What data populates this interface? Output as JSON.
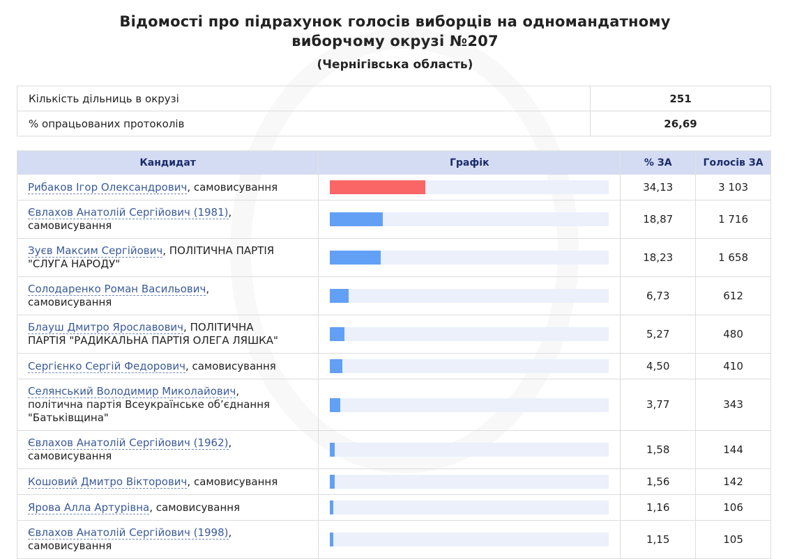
{
  "header": {
    "title_line1": "Відомості про підрахунок голосів виборців на одномандатному",
    "title_line2": "виборчому окрузі №207",
    "region": "(Чернігівська область)"
  },
  "summary": {
    "precincts_label": "Кількість дільниць в окрузі",
    "precincts_value": "251",
    "processed_label": "% опрацьованих протоколів",
    "processed_value": "26,69"
  },
  "table": {
    "headers": {
      "candidate": "Кандидат",
      "graph": "Графік",
      "percent": "% ЗА",
      "votes": "Голосів ЗА"
    }
  },
  "colors": {
    "leader_bar": "#fa6666",
    "bar": "#62a0f5",
    "track": "#ebf0fb"
  },
  "candidates": [
    {
      "name": "Рибаков Ігор Олександрович",
      "party_suffix": ", самовисування",
      "party_line2": "",
      "percent": "34,13",
      "votes": "3 103",
      "share": 34.13
    },
    {
      "name": "Євлахов Анатолій Сергійович (1981)",
      "party_suffix": ",",
      "party_line2": "самовисування",
      "percent": "18,87",
      "votes": "1 716",
      "share": 18.87
    },
    {
      "name": "Зуєв Максим Сергійович",
      "party_suffix": ", ПОЛІТИЧНА ПАРТІЯ",
      "party_line2": "\"СЛУГА НАРОДУ\"",
      "percent": "18,23",
      "votes": "1 658",
      "share": 18.23
    },
    {
      "name": "Солодаренко Роман Васильович",
      "party_suffix": ",",
      "party_line2": "самовисування",
      "percent": "6,73",
      "votes": "612",
      "share": 6.73
    },
    {
      "name": "Блауш Дмитро Ярославович",
      "party_suffix": ", ПОЛІТИЧНА",
      "party_line2": "ПАРТІЯ \"РАДИКАЛЬНА ПАРТІЯ ОЛЕГА ЛЯШКА\"",
      "percent": "5,27",
      "votes": "480",
      "share": 5.27
    },
    {
      "name": "Сергієнко Сергій Федорович",
      "party_suffix": ", самовисування",
      "party_line2": "",
      "percent": "4,50",
      "votes": "410",
      "share": 4.5
    },
    {
      "name": "Селянський Володимир Миколайович",
      "party_suffix": ",",
      "party_line2": "політична партія Всеукраїнське об’єднання \"Батьківщина\"",
      "percent": "3,77",
      "votes": "343",
      "share": 3.77
    },
    {
      "name": "Євлахов Анатолій Сергійович (1962)",
      "party_suffix": ",",
      "party_line2": "самовисування",
      "percent": "1,58",
      "votes": "144",
      "share": 1.58
    },
    {
      "name": "Кошовий Дмитро Вікторович",
      "party_suffix": ", самовисування",
      "party_line2": "",
      "percent": "1,56",
      "votes": "142",
      "share": 1.56
    },
    {
      "name": "Ярова Алла Артурівна",
      "party_suffix": ", самовисування",
      "party_line2": "",
      "percent": "1,16",
      "votes": "106",
      "share": 1.16
    },
    {
      "name": "Євлахов Анатолій Сергійович (1998)",
      "party_suffix": ",",
      "party_line2": "самовисування",
      "percent": "1,15",
      "votes": "105",
      "share": 1.15
    }
  ]
}
